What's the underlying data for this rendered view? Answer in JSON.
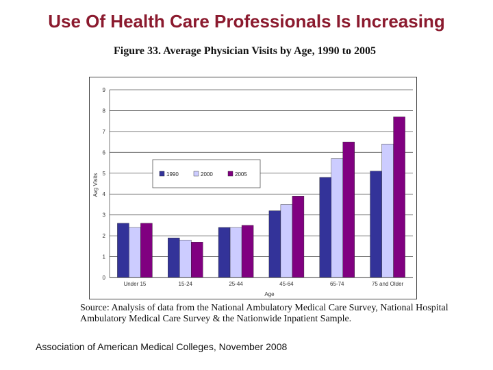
{
  "slide": {
    "title": "Use Of Health Care Professionals Is Increasing",
    "source": "Source:  Analysis of data from the National Ambulatory Medical Care Survey, National Hospital Ambulatory Medical Care Survey & the Nationwide Inpatient Sample.",
    "credit": "Association of American Medical Colleges, November 2008"
  },
  "chart_data": {
    "type": "bar",
    "title": "Figure 33. Average Physician Visits by Age, 1990 to 2005",
    "xlabel": "Age",
    "ylabel": "Avg Visits",
    "ylim": [
      0,
      9
    ],
    "yticks": [
      0,
      1,
      2,
      3,
      4,
      5,
      6,
      7,
      8,
      9
    ],
    "grid": true,
    "legend_position": "upper-left",
    "categories": [
      "Under 15",
      "15-24",
      "25-44",
      "45-64",
      "65-74",
      "75 and Older"
    ],
    "series": [
      {
        "name": "1990",
        "color": "#333399",
        "values": [
          2.6,
          1.9,
          2.4,
          3.2,
          4.8,
          5.1
        ]
      },
      {
        "name": "2000",
        "color": "#ccccff",
        "values": [
          2.4,
          1.8,
          2.4,
          3.5,
          5.7,
          6.4
        ]
      },
      {
        "name": "2005",
        "color": "#800080",
        "values": [
          2.6,
          1.7,
          2.5,
          3.9,
          6.5,
          7.7
        ]
      }
    ]
  }
}
